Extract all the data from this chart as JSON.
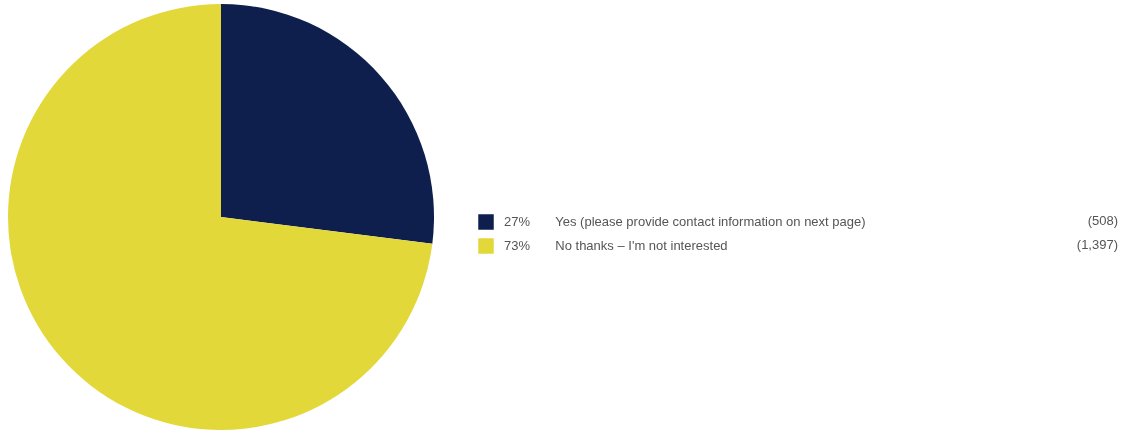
{
  "chart_data": {
    "type": "pie",
    "categories": [
      "Yes (please provide contact information on next page)",
      "No thanks – I'm not interested"
    ],
    "values": [
      27,
      73
    ],
    "colors": [
      "#0f1f4d",
      "#e3d83a"
    ],
    "value_labels": [
      "27%",
      "73%"
    ],
    "annotations": [
      "(508)",
      "(1,397)"
    ],
    "legend": "right"
  }
}
